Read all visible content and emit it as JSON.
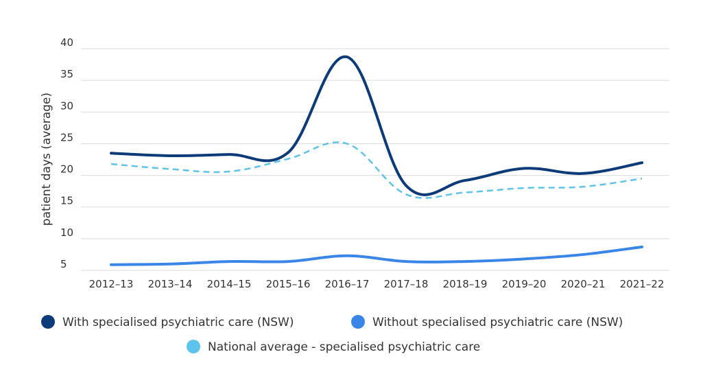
{
  "chart_data": {
    "type": "line",
    "title": "",
    "xlabel": "",
    "ylabel": "patient days (average)",
    "ylim": [
      5,
      40
    ],
    "yticks": [
      5,
      10,
      15,
      20,
      25,
      30,
      35,
      40
    ],
    "grid": "horizontal",
    "legend_position": "bottom",
    "categories": [
      "2012–13",
      "2013–14",
      "2014–15",
      "2015–16",
      "2016–17",
      "2017–18",
      "2018–19",
      "2019–20",
      "2020–21",
      "2021–22"
    ],
    "series": [
      {
        "name": "With specialised psychiatric care (NSW)",
        "color": "#0d3a78",
        "dashed": false,
        "values": [
          23.5,
          23.1,
          23.3,
          23.6,
          38.7,
          18.4,
          19.2,
          21.1,
          20.3,
          22.0
        ]
      },
      {
        "name": "Without specialised psychiatric care (NSW)",
        "color": "#3a86e8",
        "dashed": false,
        "values": [
          5.9,
          6.0,
          6.4,
          6.4,
          7.3,
          6.4,
          6.4,
          6.8,
          7.5,
          8.7
        ]
      },
      {
        "name": "National average - specialised psychiatric care",
        "color": "#5ec3ea",
        "dashed": true,
        "values": [
          21.8,
          21.0,
          20.6,
          22.6,
          25.0,
          17.0,
          17.3,
          18.0,
          18.2,
          19.5
        ]
      }
    ]
  }
}
